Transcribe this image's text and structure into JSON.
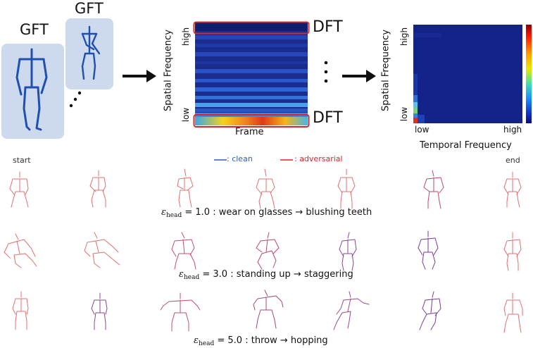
{
  "top": {
    "gft_left": "GFT",
    "gft_right": "GFT",
    "dft_top": "DFT",
    "dft_bottom": "DFT",
    "spectrum": {
      "ylabel": "Spatial Frequency",
      "y_high": "high",
      "y_low": "low",
      "xlabel": "Frame"
    },
    "freq_map": {
      "ylabel": "Spatial Frequency",
      "y_high": "high",
      "y_low": "low",
      "x_low": "low",
      "x_high": "high",
      "xlabel": "Temporal Frequency"
    }
  },
  "legend": {
    "clean_label": ": clean",
    "adversarial_label": ": adversarial",
    "clean_color": "#2f5bb7",
    "adversarial_color": "#e0242a"
  },
  "sequence": {
    "start": "start",
    "end": "end"
  },
  "rows": [
    {
      "eps_symbol": "ε",
      "eps_sub": "head",
      "value": "= 1.0",
      "description": ": wear on glasses → blushing teeth"
    },
    {
      "eps_symbol": "ε",
      "eps_sub": "head",
      "value": "= 3.0",
      "description": ": standing up → staggering"
    },
    {
      "eps_symbol": "ε",
      "eps_sub": "head",
      "value": "= 5.0",
      "description": ": throw → hopping"
    }
  ]
}
